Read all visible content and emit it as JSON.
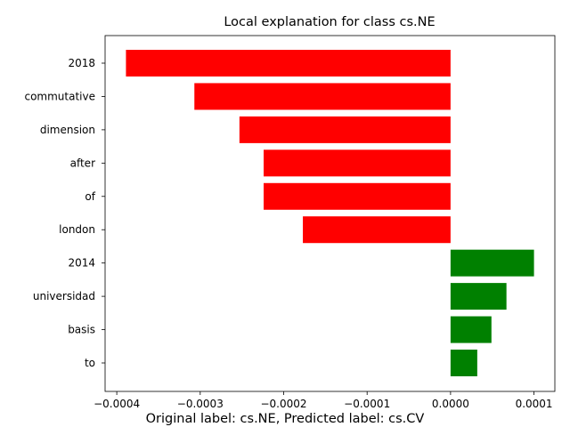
{
  "chart_data": {
    "type": "bar",
    "orientation": "horizontal",
    "title": "Local explanation for class cs.NE",
    "caption": "Original label: cs.NE, Predicted label: cs.CV",
    "categories": [
      "2018",
      "commutative",
      "dimension",
      "after",
      "of",
      "london",
      "2014",
      "universidad",
      "basis",
      "to"
    ],
    "values": [
      -0.000389,
      -0.000307,
      -0.000253,
      -0.000224,
      -0.000224,
      -0.000177,
      0.0001,
      6.7e-05,
      4.9e-05,
      3.2e-05
    ],
    "colors": {
      "negative": "#ff0000",
      "positive": "#008000"
    },
    "xlim": [
      -0.000414,
      0.000125
    ],
    "xticks": [
      -0.0004,
      -0.0003,
      -0.0002,
      -0.0001,
      0.0,
      0.0001
    ],
    "xtick_labels": [
      "−0.0004",
      "−0.0003",
      "−0.0002",
      "−0.0001",
      "0.0000",
      "0.0001"
    ],
    "xlabel": "",
    "ylabel": "",
    "grid": false,
    "legend": false
  }
}
